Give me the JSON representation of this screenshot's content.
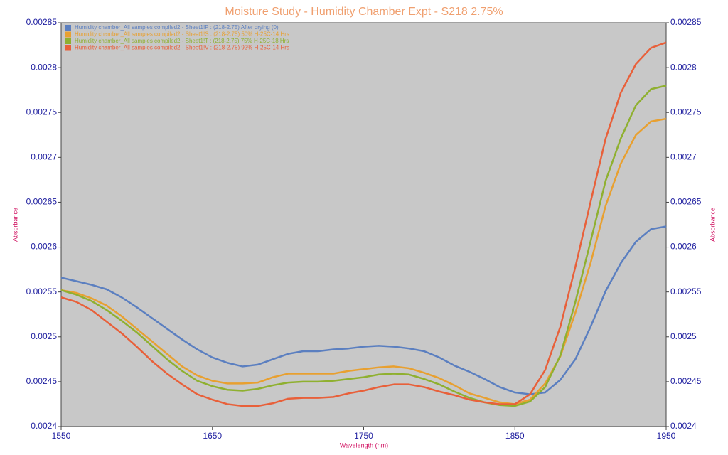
{
  "chart_data": {
    "type": "line",
    "title": "Moisture Study - Humidity Chamber Expt - S218 2.75%",
    "xlabel": "Wavelength (nm)",
    "ylabel": "Absorbance",
    "y2label": "Absorbance",
    "x": [
      1550,
      1560,
      1570,
      1580,
      1590,
      1600,
      1610,
      1620,
      1630,
      1640,
      1650,
      1660,
      1670,
      1680,
      1690,
      1700,
      1710,
      1720,
      1730,
      1740,
      1750,
      1760,
      1770,
      1780,
      1790,
      1800,
      1810,
      1820,
      1830,
      1840,
      1850,
      1860,
      1870,
      1880,
      1890,
      1900,
      1910,
      1920,
      1930,
      1940,
      1950
    ],
    "series": [
      {
        "name": "Humidity chamber_All samples compiled2 - Sheet1!P : (218-2.75) After drying (0)",
        "color": "#5b7fc0",
        "values": [
          0.002566,
          0.002562,
          0.002558,
          0.002553,
          0.002544,
          0.002533,
          0.002521,
          0.002509,
          0.002497,
          0.002486,
          0.002477,
          0.002471,
          0.002467,
          0.002469,
          0.002475,
          0.002481,
          0.002484,
          0.002484,
          0.002486,
          0.002487,
          0.002489,
          0.00249,
          0.002489,
          0.002487,
          0.002484,
          0.002477,
          0.002468,
          0.002461,
          0.002453,
          0.002444,
          0.002438,
          0.002436,
          0.002438,
          0.002452,
          0.002475,
          0.002511,
          0.002551,
          0.002582,
          0.002606,
          0.00262,
          0.002623
        ]
      },
      {
        "name": "Humidity chamber_All samples compiled2 - Sheet1!S : (218-2.75) 50% H-25C-14 Hrs",
        "color": "#e8a030",
        "values": [
          0.002552,
          0.002549,
          0.002543,
          0.002535,
          0.002523,
          0.002509,
          0.002495,
          0.002481,
          0.002467,
          0.002457,
          0.002451,
          0.002448,
          0.002448,
          0.002449,
          0.002455,
          0.002459,
          0.002459,
          0.002459,
          0.002459,
          0.002462,
          0.002464,
          0.002466,
          0.002467,
          0.002465,
          0.00246,
          0.002454,
          0.002446,
          0.002437,
          0.002432,
          0.002427,
          0.002425,
          0.00243,
          0.002448,
          0.002478,
          0.002527,
          0.002582,
          0.002646,
          0.002693,
          0.002725,
          0.00274,
          0.002743
        ]
      },
      {
        "name": "Humidity chamber_All samples compiled2 - Sheet1!T : (218-2.75) 75% H-25C-18 Hrs",
        "color": "#8fb030",
        "values": [
          0.002552,
          0.002547,
          0.00254,
          0.00253,
          0.002518,
          0.002505,
          0.00249,
          0.002475,
          0.002462,
          0.002451,
          0.002445,
          0.002441,
          0.00244,
          0.002442,
          0.002446,
          0.002449,
          0.00245,
          0.00245,
          0.002451,
          0.002453,
          0.002455,
          0.002458,
          0.002459,
          0.002458,
          0.002453,
          0.002447,
          0.002439,
          0.002432,
          0.002427,
          0.002424,
          0.002423,
          0.002428,
          0.002444,
          0.002479,
          0.002539,
          0.002606,
          0.002674,
          0.002721,
          0.002758,
          0.002776,
          0.00278
        ]
      },
      {
        "name": "Humidity chamber_All samples compiled2 - Sheet1!V : (218-2.75) 92% H-25C-14 Hrs",
        "color": "#e8603a",
        "values": [
          0.002544,
          0.002539,
          0.00253,
          0.002517,
          0.002504,
          0.002489,
          0.002473,
          0.002459,
          0.002447,
          0.002436,
          0.00243,
          0.002425,
          0.002423,
          0.002423,
          0.002426,
          0.002431,
          0.002432,
          0.002432,
          0.002433,
          0.002437,
          0.00244,
          0.002444,
          0.002447,
          0.002447,
          0.002444,
          0.002439,
          0.002435,
          0.00243,
          0.002427,
          0.002425,
          0.002425,
          0.002436,
          0.002463,
          0.002511,
          0.002578,
          0.00265,
          0.002721,
          0.002772,
          0.002804,
          0.002822,
          0.002828
        ]
      }
    ],
    "xlim": [
      1550,
      1950
    ],
    "xticks": [
      1550,
      1650,
      1750,
      1850,
      1950
    ],
    "ylim": [
      0.0024,
      0.00285
    ],
    "yticks": [
      0.0024,
      0.00245,
      0.0025,
      0.00255,
      0.0026,
      0.00265,
      0.0027,
      0.00275,
      0.0028,
      0.00285
    ],
    "y2lim": [
      0.0024,
      0.00285
    ],
    "y2ticks": [
      0.0024,
      0.00245,
      0.0025,
      0.00255,
      0.0026,
      0.00265,
      0.0027,
      0.00275,
      0.0028,
      0.00285
    ],
    "legend": "upper-left"
  }
}
